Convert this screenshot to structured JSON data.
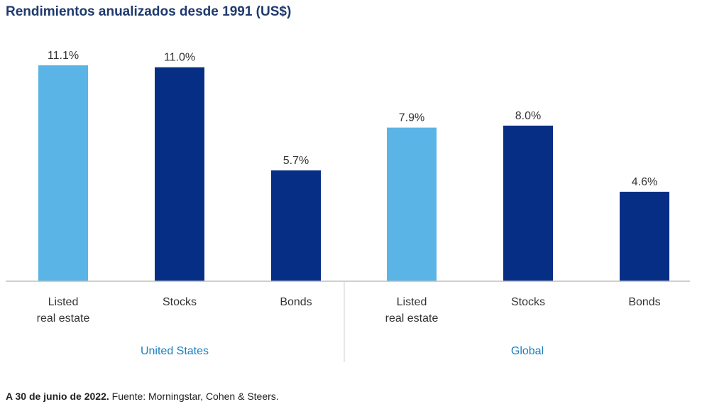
{
  "chart_data": {
    "type": "bar",
    "title": "Rendimientos anualizados desde 1991 (US$)",
    "ylim": [
      0,
      11.1
    ],
    "groups": [
      {
        "name": "United States",
        "categories": [
          "Listed\nreal estate",
          "Stocks",
          "Bonds"
        ],
        "values": [
          11.1,
          11.0,
          5.7
        ],
        "labels": [
          "11.1%",
          "11.0%",
          "5.7%"
        ]
      },
      {
        "name": "Global",
        "categories": [
          "Listed\nreal estate",
          "Stocks",
          "Bonds"
        ],
        "values": [
          7.9,
          8.0,
          4.6
        ],
        "labels": [
          "7.9%",
          "8.0%",
          "4.6%"
        ]
      }
    ],
    "colors": {
      "listed": "#5ab4e5",
      "other": "#062e85",
      "group_label": "#1a7fc1"
    }
  },
  "footnote": {
    "bold": "A 30 de junio de 2022.",
    "text": " Fuente: Morningstar, Cohen & Steers."
  }
}
